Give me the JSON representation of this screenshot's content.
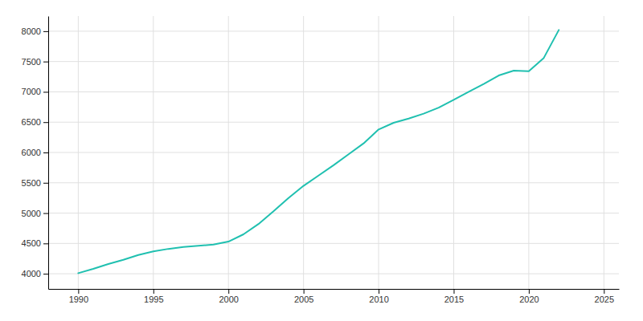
{
  "chart_data": {
    "type": "line",
    "x": [
      1990,
      1991,
      1992,
      1993,
      1994,
      1995,
      1996,
      1997,
      1998,
      1999,
      2000,
      2001,
      2002,
      2003,
      2004,
      2005,
      2006,
      2007,
      2008,
      2009,
      2010,
      2011,
      2012,
      2013,
      2014,
      2015,
      2016,
      2017,
      2018,
      2019,
      2020,
      2021,
      2022
    ],
    "values": [
      4010,
      4080,
      4160,
      4230,
      4310,
      4370,
      4410,
      4440,
      4460,
      4480,
      4530,
      4650,
      4820,
      5030,
      5250,
      5450,
      5620,
      5790,
      5970,
      6150,
      6380,
      6490,
      6560,
      6640,
      6740,
      6870,
      7000,
      7130,
      7270,
      7350,
      7340,
      7560,
      8020
    ],
    "color": "#20c0b0",
    "xlim": [
      1988,
      2026
    ],
    "ylim": [
      3750,
      8250
    ],
    "xticks": [
      1990,
      1995,
      2000,
      2005,
      2010,
      2015,
      2020,
      2025
    ],
    "yticks": [
      4000,
      4500,
      5000,
      5500,
      6000,
      6500,
      7000,
      7500,
      8000
    ],
    "grid": true
  }
}
